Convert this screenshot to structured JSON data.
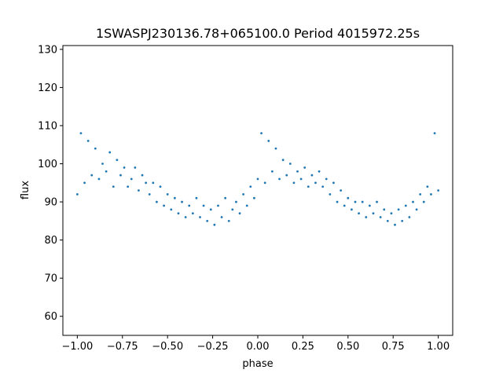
{
  "chart_data": {
    "type": "scatter",
    "title": "1SWASPJ230136.78+065100.0 Period 4015972.25s",
    "xlabel": "phase",
    "ylabel": "flux",
    "xlim": [
      -1.08,
      1.08
    ],
    "ylim": [
      55,
      131
    ],
    "x_ticks": [
      -1.0,
      -0.75,
      -0.5,
      -0.25,
      0.0,
      0.25,
      0.5,
      0.75,
      1.0
    ],
    "x_tick_labels": [
      "−1.00",
      "−0.75",
      "−0.50",
      "−0.25",
      "0.00",
      "0.25",
      "0.50",
      "0.75",
      "1.00"
    ],
    "y_ticks": [
      60,
      70,
      80,
      90,
      100,
      110,
      120,
      130
    ],
    "y_tick_labels": [
      "60",
      "70",
      "80",
      "90",
      "100",
      "110",
      "120",
      "130"
    ],
    "grid": false,
    "marker_color": "#1f77b4",
    "series": [
      {
        "points": [
          [
            -1.0,
            92
          ],
          [
            -0.98,
            108
          ],
          [
            -0.96,
            95
          ],
          [
            -0.94,
            106
          ],
          [
            -0.92,
            97
          ],
          [
            -0.9,
            104
          ],
          [
            -0.88,
            96
          ],
          [
            -0.86,
            100
          ],
          [
            -0.84,
            98
          ],
          [
            -0.82,
            103
          ],
          [
            -0.8,
            94
          ],
          [
            -0.78,
            101
          ],
          [
            -0.76,
            97
          ],
          [
            -0.74,
            99
          ],
          [
            -0.72,
            94
          ],
          [
            -0.7,
            96
          ],
          [
            -0.68,
            99
          ],
          [
            -0.66,
            93
          ],
          [
            -0.64,
            97
          ],
          [
            -0.62,
            95
          ],
          [
            -0.6,
            92
          ],
          [
            -0.58,
            95
          ],
          [
            -0.56,
            90
          ],
          [
            -0.54,
            94
          ],
          [
            -0.52,
            89
          ],
          [
            -0.5,
            92
          ],
          [
            -0.48,
            88
          ],
          [
            -0.46,
            91
          ],
          [
            -0.44,
            87
          ],
          [
            -0.42,
            90
          ],
          [
            -0.4,
            86
          ],
          [
            -0.38,
            89
          ],
          [
            -0.36,
            87
          ],
          [
            -0.34,
            91
          ],
          [
            -0.32,
            86
          ],
          [
            -0.3,
            89
          ],
          [
            -0.28,
            85
          ],
          [
            -0.26,
            88
          ],
          [
            -0.24,
            84
          ],
          [
            -0.22,
            89
          ],
          [
            -0.2,
            86
          ],
          [
            -0.18,
            91
          ],
          [
            -0.16,
            85
          ],
          [
            -0.14,
            88
          ],
          [
            -0.12,
            90
          ],
          [
            -0.1,
            87
          ],
          [
            -0.08,
            92
          ],
          [
            -0.06,
            89
          ],
          [
            -0.04,
            94
          ],
          [
            -0.02,
            91
          ],
          [
            0.0,
            96
          ],
          [
            0.02,
            108
          ],
          [
            0.04,
            95
          ],
          [
            0.06,
            106
          ],
          [
            0.08,
            98
          ],
          [
            0.1,
            104
          ],
          [
            0.12,
            96
          ],
          [
            0.14,
            101
          ],
          [
            0.16,
            97
          ],
          [
            0.18,
            100
          ],
          [
            0.2,
            95
          ],
          [
            0.22,
            98
          ],
          [
            0.24,
            96
          ],
          [
            0.26,
            99
          ],
          [
            0.28,
            94
          ],
          [
            0.3,
            97
          ],
          [
            0.32,
            95
          ],
          [
            0.34,
            98
          ],
          [
            0.36,
            94
          ],
          [
            0.38,
            96
          ],
          [
            0.4,
            92
          ],
          [
            0.42,
            95
          ],
          [
            0.44,
            90
          ],
          [
            0.46,
            93
          ],
          [
            0.48,
            89
          ],
          [
            0.5,
            91
          ],
          [
            0.52,
            88
          ],
          [
            0.54,
            90
          ],
          [
            0.56,
            87
          ],
          [
            0.58,
            90
          ],
          [
            0.6,
            86
          ],
          [
            0.62,
            89
          ],
          [
            0.64,
            87
          ],
          [
            0.66,
            90
          ],
          [
            0.68,
            86
          ],
          [
            0.7,
            88
          ],
          [
            0.72,
            85
          ],
          [
            0.74,
            87
          ],
          [
            0.76,
            84
          ],
          [
            0.78,
            88
          ],
          [
            0.8,
            85
          ],
          [
            0.82,
            89
          ],
          [
            0.84,
            86
          ],
          [
            0.86,
            90
          ],
          [
            0.88,
            88
          ],
          [
            0.9,
            92
          ],
          [
            0.92,
            90
          ],
          [
            0.94,
            94
          ],
          [
            0.96,
            92
          ],
          [
            0.98,
            108
          ],
          [
            1.0,
            93
          ]
        ]
      }
    ]
  }
}
